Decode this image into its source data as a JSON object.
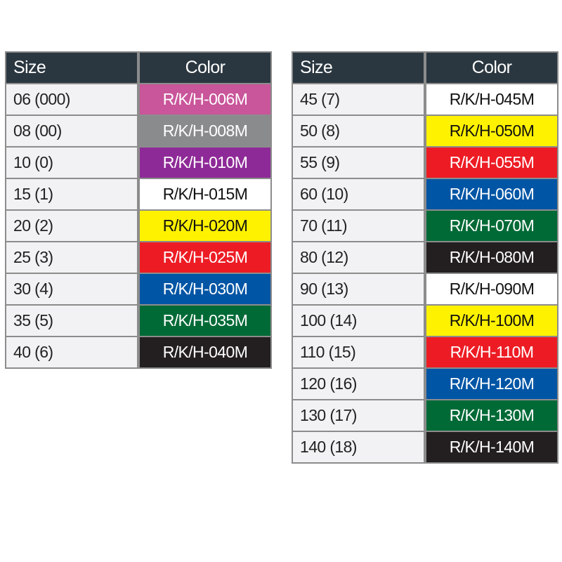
{
  "headers": {
    "size": "Size",
    "color": "Color"
  },
  "colors": {
    "header": "#2b3740",
    "border": "#8c8c8c",
    "size_cell": "#f2f2f4",
    "pink": "#c9559a",
    "gray": "#8a8b8d",
    "purple": "#8e2a97",
    "white": "#ffffff",
    "yellow": "#fff200",
    "red": "#ed1c24",
    "blue": "#0055a5",
    "green": "#006a36",
    "black": "#231f20"
  },
  "tables": [
    {
      "rows": [
        {
          "size": "06 (000)",
          "code": "R/K/H-006M",
          "color": "pink"
        },
        {
          "size": "08 (00)",
          "code": "R/K/H-008M",
          "color": "gray"
        },
        {
          "size": "10 (0)",
          "code": "R/K/H-010M",
          "color": "purple"
        },
        {
          "size": "15 (1)",
          "code": "R/K/H-015M",
          "color": "white"
        },
        {
          "size": "20 (2)",
          "code": "R/K/H-020M",
          "color": "yellow"
        },
        {
          "size": "25 (3)",
          "code": "R/K/H-025M",
          "color": "red"
        },
        {
          "size": "30 (4)",
          "code": "R/K/H-030M",
          "color": "blue"
        },
        {
          "size": "35 (5)",
          "code": "R/K/H-035M",
          "color": "green"
        },
        {
          "size": "40 (6)",
          "code": "R/K/H-040M",
          "color": "black"
        }
      ]
    },
    {
      "rows": [
        {
          "size": "45 (7)",
          "code": "R/K/H-045M",
          "color": "white"
        },
        {
          "size": "50 (8)",
          "code": "R/K/H-050M",
          "color": "yellow"
        },
        {
          "size": "55 (9)",
          "code": "R/K/H-055M",
          "color": "red"
        },
        {
          "size": "60 (10)",
          "code": "R/K/H-060M",
          "color": "blue"
        },
        {
          "size": "70 (11)",
          "code": "R/K/H-070M",
          "color": "green"
        },
        {
          "size": "80 (12)",
          "code": "R/K/H-080M",
          "color": "black"
        },
        {
          "size": "90 (13)",
          "code": "R/K/H-090M",
          "color": "white"
        },
        {
          "size": "100 (14)",
          "code": "R/K/H-100M",
          "color": "yellow"
        },
        {
          "size": "110 (15)",
          "code": "R/K/H-110M",
          "color": "red"
        },
        {
          "size": "120 (16)",
          "code": "R/K/H-120M",
          "color": "blue"
        },
        {
          "size": "130 (17)",
          "code": "R/K/H-130M",
          "color": "green"
        },
        {
          "size": "140 (18)",
          "code": "R/K/H-140M",
          "color": "black"
        }
      ]
    }
  ]
}
